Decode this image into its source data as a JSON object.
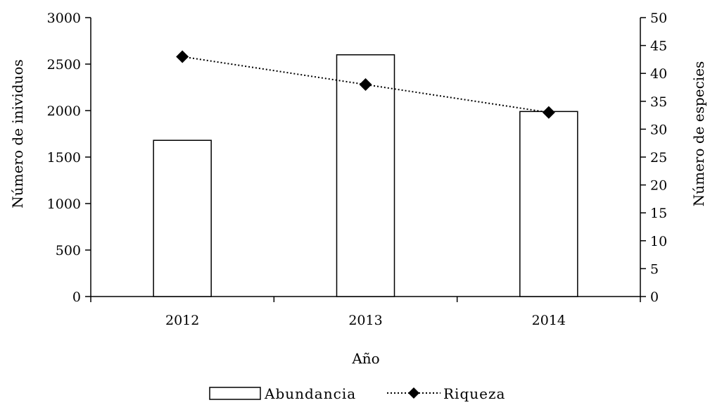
{
  "chart_data": {
    "type": "bar",
    "categories": [
      "2012",
      "2013",
      "2014"
    ],
    "series": [
      {
        "name": "Abundancia",
        "type": "bar",
        "axis": "left",
        "values": [
          1680,
          2600,
          1990
        ],
        "color": "#ffffff",
        "stroke": "#000000"
      },
      {
        "name": "Riqueza",
        "type": "line",
        "axis": "right",
        "values": [
          43,
          38,
          33
        ],
        "color": "#000000",
        "line_style": "dotted",
        "marker": "diamond"
      }
    ],
    "xlabel": "Año",
    "ylabel_left": "Número de inividuos",
    "ylabel_right": "Número de especies",
    "ylim_left": [
      0,
      3000
    ],
    "ylim_right": [
      0,
      50
    ],
    "yticks_left": [
      "0",
      "500",
      "1000",
      "1500",
      "2000",
      "2500",
      "3000"
    ],
    "yticks_right": [
      "0",
      "5",
      "10",
      "15",
      "20",
      "25",
      "30",
      "35",
      "40",
      "45",
      "50"
    ],
    "legend": {
      "position": "bottom",
      "entries": [
        "Abundancia",
        "Riqueza"
      ]
    },
    "grid": false
  }
}
